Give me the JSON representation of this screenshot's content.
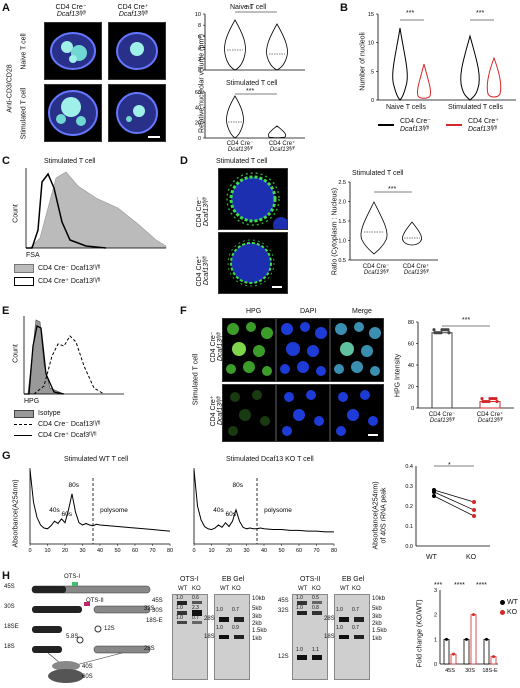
{
  "panels": {
    "A": "A",
    "B": "B",
    "C": "C",
    "D": "D",
    "E": "E",
    "F": "F",
    "G": "G",
    "H": "H"
  },
  "a": {
    "col1_l1": "CD4 Cre⁻",
    "col1_l2": "Dcaf13ᶠˡ/ᶠˡ",
    "col2_l1": "CD4 Cre⁺",
    "col2_l2": "Dcaf13ᶠˡ/ᶠˡ",
    "row1": "Naive T cell",
    "row2": "Stimulated T cell",
    "side": "Anti-CD3/CD28",
    "naive_title": "Naive T cell",
    "naive_sig": "ns",
    "naive_ylabel": "Relative nucleolar volume (μm³)",
    "naive_yticks": [
      "10",
      "8",
      "6",
      "4",
      "2",
      "0"
    ],
    "stim_title": "Stimulated T cell",
    "stim_sig": "***",
    "stim_yticks": [
      "60",
      "40",
      "20",
      "0"
    ],
    "x1_l1": "CD4 Cre⁻",
    "x1_l2": "Dcaf13ᶠˡ/ᶠˡ",
    "x2_l1": "CD4 Cre⁺",
    "x2_l2": "Dcaf13ᶠˡ/ᶠˡ"
  },
  "b": {
    "ylabel": "Number of nucleoli",
    "yticks": [
      "15",
      "10",
      "5",
      "0"
    ],
    "x1": "Naive T cells",
    "x2": "Stimulated T cells",
    "sig1": "***",
    "sig2": "***",
    "leg1_l1": "CD4 Cre⁻",
    "leg1_l2": "Dcaf13ᶠˡ/ᶠˡ",
    "leg2_l1": "CD4 Cre⁺",
    "leg2_l2": "Dcaf13ᶠˡ/ᶠˡ",
    "color1": "#000000",
    "color2": "#d62728"
  },
  "c": {
    "title": "Stimulated T cell",
    "ylabel": "Count",
    "xlabel": "FSA",
    "leg1": "CD4 Cre⁻ Dcaf13ᶠˡ/ᶠˡ",
    "leg2": "CD4 Cre⁺ Dcaf13ᶠˡ/ᶠˡ"
  },
  "d": {
    "img_title": "Stimulated T cell",
    "row1_l1": "CD4 Cre⁻",
    "row1_l2": "Dcaf13ᶠˡ/ᶠˡ",
    "row2_l1": "CD4 Cre⁺",
    "row2_l2": "Dcaf13ᶠˡ/ᶠˡ",
    "plot_title": "Stimulated T cell",
    "ylabel": "Ratio (Cytoplasm : Nucleus)",
    "yticks": [
      "2.5",
      "2.0",
      "1.5",
      "1.0",
      "0.5"
    ],
    "sig": "***",
    "x1_l1": "CD4 Cre⁻",
    "x1_l2": "Dcaf13ᶠˡ/ᶠˡ",
    "x2_l1": "CD4 Cre⁺",
    "x2_l2": "Dcaf13ᶠˡ/ᶠˡ"
  },
  "e": {
    "ylabel": "Count",
    "xlabel": "HPG",
    "leg1": "Isotype",
    "leg2": "CD4 Cre⁻ Dcaf13ᶠˡ/ᶠˡ",
    "leg3": "CD4 Cre⁺ Dcaf3ᶠˡ/ᶠˡ"
  },
  "f": {
    "col1": "HPG",
    "col2": "DAPI",
    "col3": "Merge",
    "side": "Stimulated T cell",
    "row1_l1": "CD4 Cre⁻",
    "row1_l2": "Dcaf13ᶠˡ/ᶠˡ",
    "row2_l1": "CD4 Cre⁺",
    "row2_l2": "Dcaf13ᶠˡ/ᶠˡ",
    "ylabel": "HPG Intensity",
    "yticks": [
      "80",
      "60",
      "40",
      "20",
      "0"
    ],
    "sig": "***",
    "x1_l1": "CD4 Cre⁻",
    "x1_l2": "Dcaf13ᶠˡ/ᶠˡ",
    "x2_l1": "CD4 Cre⁺",
    "x2_l2": "Dcaf13ᶠˡ/ᶠˡ"
  },
  "g": {
    "title1": "Stimulated WT T cell",
    "title2": "Stimulated Dcaf13 KO T cell",
    "ylabel": "Absorbance(A254nm)",
    "xlabel": "Fraction",
    "xticks": [
      "0",
      "10",
      "20",
      "30",
      "40",
      "50",
      "60",
      "70",
      "80"
    ],
    "peaks": [
      "40s",
      "60s",
      "80s",
      "polysome"
    ],
    "r_ylabel1": "Absorbance(A254nm)",
    "r_ylabel2": "of 40S rRNA peak",
    "r_yticks": [
      "0.4",
      "0.3",
      "0.2",
      "0.1",
      "0.0"
    ],
    "r_x1": "WT",
    "r_x2": "KO",
    "r_sig": "*"
  },
  "h": {
    "diagram": {
      "a45": "45S",
      "a30": "30S",
      "a18e": "18SE",
      "a18": "18S",
      "a32": "32S",
      "a12": "12S",
      "a58": "5.8S",
      "a28": "28S",
      "ots1": "OTS-I",
      "ots2": "OTS-II",
      "s40": "40S",
      "s60": "60S"
    },
    "blot1": {
      "title": "OTS-I",
      "wt": "WT",
      "ko": "KO",
      "bands": [
        "45S",
        "30S",
        "18S-E"
      ],
      "vals": [
        [
          "1.0",
          "0.6"
        ],
        [
          "1.0",
          "2.3"
        ],
        [
          "1.0",
          "0.7"
        ]
      ]
    },
    "gel1": {
      "title": "EB Gel",
      "wt": "WT",
      "ko": "KO",
      "vals": [
        [
          "1.0",
          "0.7"
        ],
        [
          "1.0",
          "0.9"
        ]
      ],
      "bands": [
        "28S",
        "18S"
      ],
      "ladder": [
        "10kb",
        "5kb",
        "3kb",
        "2kb",
        "1.5kb",
        "1kb"
      ]
    },
    "blot2": {
      "title": "OTS-II",
      "wt": "WT",
      "ko": "KO",
      "bands": [
        "45S",
        "32S",
        "12S"
      ],
      "vals": [
        [
          "1.0",
          "0.5"
        ],
        [
          "1.0",
          "0.8"
        ],
        [
          "1.0",
          "1.1"
        ]
      ]
    },
    "gel2": {
      "title": "EB Gel",
      "wt": "WT",
      "ko": "KO",
      "vals": [
        [
          "1.0",
          "0.7"
        ],
        [
          "1.0",
          "0.7"
        ]
      ],
      "bands": [
        "28S",
        "18S"
      ],
      "ladder": [
        "10kb",
        "5kb",
        "3kb",
        "2kb",
        "1.5kb",
        "1kb"
      ]
    },
    "bar": {
      "ylabel": "Fold change (KO/WT)",
      "yticks": [
        "3",
        "2",
        "1",
        "0"
      ],
      "cats": [
        "45S",
        "30S",
        "18S-E"
      ],
      "sig": [
        "***",
        "****",
        "****"
      ],
      "leg1": "WT",
      "leg2": "KO",
      "color_wt": "#000000",
      "color_ko": "#d62728"
    }
  },
  "chart_data": [
    {
      "type": "violin",
      "panel": "A",
      "title": "Naive T cell",
      "ylabel": "Relative nucleolar volume (μm³)",
      "ylim": [
        0,
        10
      ],
      "categories": [
        "CD4 Cre⁻ Dcaf13ᶠˡ/ᶠˡ",
        "CD4 Cre⁺ Dcaf13ᶠˡ/ᶠˡ"
      ],
      "medians": [
        3.5,
        3.0
      ],
      "annotation": "ns"
    },
    {
      "type": "violin",
      "panel": "A",
      "title": "Stimulated T cell",
      "ylim": [
        0,
        60
      ],
      "categories": [
        "CD4 Cre⁻ Dcaf13ᶠˡ/ᶠˡ",
        "CD4 Cre⁺ Dcaf13ᶠˡ/ᶠˡ"
      ],
      "medians": [
        20,
        3
      ],
      "annotation": "***"
    },
    {
      "type": "violin",
      "panel": "B",
      "ylabel": "Number of nucleoli",
      "ylim": [
        0,
        15
      ],
      "categories": [
        "Naive T cells",
        "Stimulated T cells"
      ],
      "series": [
        {
          "name": "CD4 Cre⁻ Dcaf13ᶠˡ/ᶠˡ",
          "medians": [
            3,
            3
          ]
        },
        {
          "name": "CD4 Cre⁺ Dcaf13ᶠˡ/ᶠˡ",
          "medians": [
            1,
            2
          ]
        }
      ]
    },
    {
      "type": "violin",
      "panel": "D",
      "title": "Stimulated T cell",
      "ylabel": "Ratio (Cytoplasm : Nucleus)",
      "ylim": [
        0.5,
        2.5
      ],
      "categories": [
        "CD4 Cre⁻ Dcaf13ᶠˡ/ᶠˡ",
        "CD4 Cre⁺ Dcaf13ᶠˡ/ᶠˡ"
      ],
      "medians": [
        1.5,
        1.2
      ],
      "annotation": "***"
    },
    {
      "type": "bar",
      "panel": "F",
      "ylabel": "HPG Intensity",
      "ylim": [
        0,
        80
      ],
      "categories": [
        "CD4 Cre⁻ Dcaf13ᶠˡ/ᶠˡ",
        "CD4 Cre⁺ Dcaf13ᶠˡ/ᶠˡ"
      ],
      "values": [
        70,
        6
      ],
      "annotation": "***"
    },
    {
      "type": "line",
      "panel": "G",
      "title": "Stimulated WT T cell",
      "ylabel": "Absorbance(A254nm)",
      "xlim": [
        0,
        80
      ],
      "x": [
        0,
        2,
        4,
        6,
        8,
        10,
        12,
        14,
        16,
        18,
        20,
        22,
        24,
        26,
        28,
        30,
        32,
        34,
        36,
        38,
        40,
        45,
        50,
        55,
        60,
        65,
        70,
        75,
        80
      ],
      "y": [
        0.98,
        0.55,
        0.35,
        0.25,
        0.21,
        0.2,
        0.24,
        0.3,
        0.27,
        0.33,
        0.28,
        0.45,
        0.66,
        0.42,
        0.28,
        0.25,
        0.27,
        0.25,
        0.24,
        0.26,
        0.25,
        0.24,
        0.23,
        0.22,
        0.21,
        0.2,
        0.19,
        0.18,
        0.17
      ]
    },
    {
      "type": "line",
      "panel": "G",
      "title": "Stimulated Dcaf13 KO T cell",
      "xlim": [
        0,
        80
      ],
      "x": [
        0,
        2,
        4,
        6,
        8,
        10,
        12,
        14,
        16,
        18,
        20,
        22,
        24,
        26,
        28,
        30,
        32,
        34,
        36,
        38,
        40,
        45,
        50,
        55,
        60,
        65,
        70,
        75,
        80
      ],
      "y": [
        0.98,
        0.5,
        0.32,
        0.23,
        0.2,
        0.19,
        0.21,
        0.25,
        0.22,
        0.28,
        0.23,
        0.3,
        0.45,
        0.3,
        0.22,
        0.2,
        0.21,
        0.2,
        0.2,
        0.21,
        0.2,
        0.19,
        0.19,
        0.18,
        0.18,
        0.17,
        0.17,
        0.16,
        0.16
      ]
    },
    {
      "type": "scatter",
      "panel": "G",
      "ylabel": "Absorbance(A254nm) of 40S rRNA peak",
      "ylim": [
        0,
        0.4
      ],
      "categories": [
        "WT",
        "KO"
      ],
      "series": [
        {
          "values": [
            0.28,
            0.22
          ]
        },
        {
          "values": [
            0.27,
            0.18
          ]
        },
        {
          "values": [
            0.25,
            0.15
          ]
        }
      ],
      "annotation": "*"
    },
    {
      "type": "bar",
      "panel": "H",
      "ylabel": "Fold change (KO/WT)",
      "ylim": [
        0,
        3
      ],
      "categories": [
        "45S",
        "30S",
        "18S-E"
      ],
      "series": [
        {
          "name": "WT",
          "values": [
            1,
            1,
            1
          ]
        },
        {
          "name": "KO",
          "values": [
            0.4,
            2.0,
            0.3
          ]
        }
      ],
      "annotation": [
        "***",
        "****",
        "****"
      ]
    }
  ]
}
